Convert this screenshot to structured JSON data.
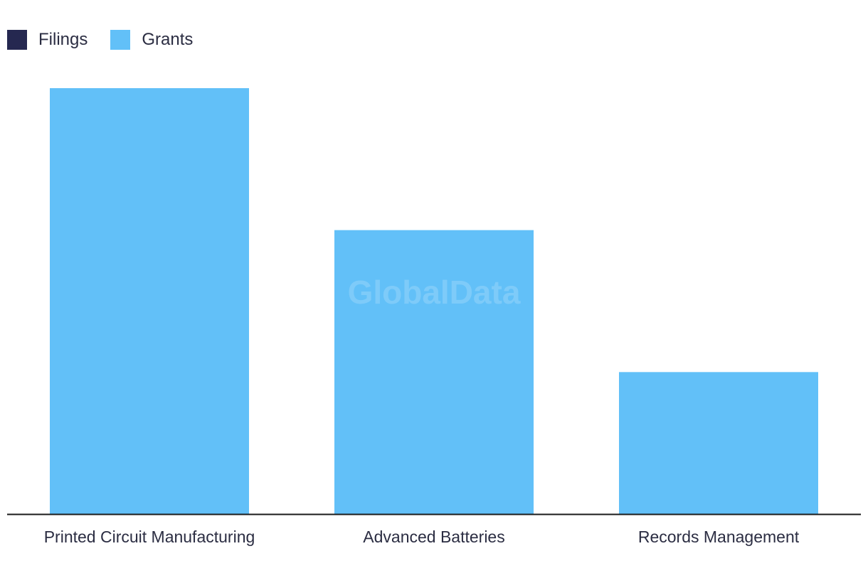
{
  "chart_data": {
    "type": "bar",
    "categories": [
      "Printed Circuit Manufacturing",
      "Advanced Batteries",
      "Records Management"
    ],
    "series": [
      {
        "name": "Filings",
        "values": [
          0,
          0,
          0
        ],
        "color": "#252850"
      },
      {
        "name": "Grants",
        "values": [
          3,
          2,
          1
        ],
        "color": "#62c0f8"
      }
    ],
    "ylim": [
      0,
      3
    ],
    "grid": false,
    "legend_position": "top-left",
    "watermark": "GlobalData"
  }
}
